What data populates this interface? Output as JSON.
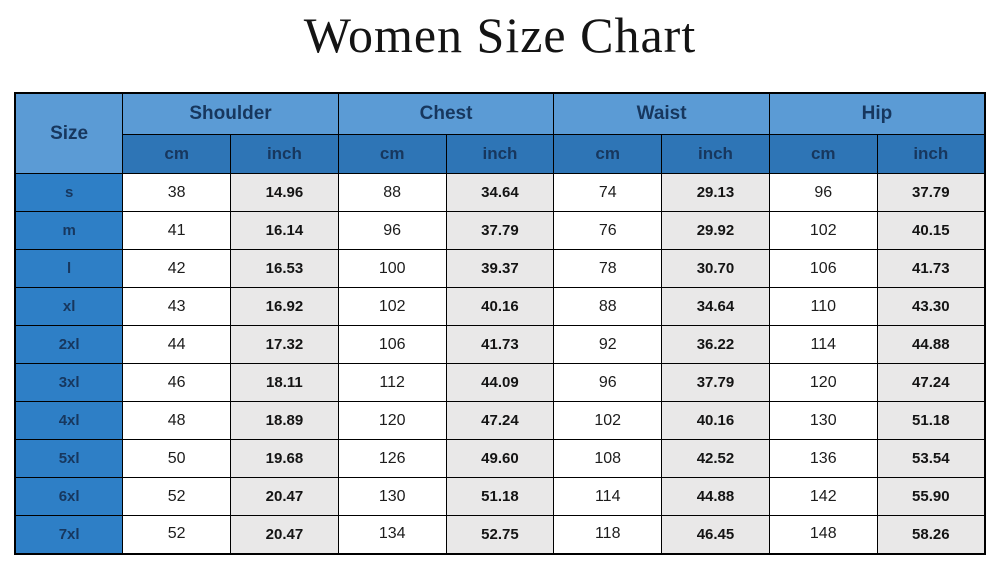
{
  "page": {
    "title": "Women Size Chart"
  },
  "table": {
    "size_header": "Size",
    "groups": [
      "Shoulder",
      "Chest",
      "Waist",
      "Hip"
    ],
    "unit_headers": [
      "cm",
      "inch"
    ]
  },
  "chart_data": {
    "type": "table",
    "title": "Women Size Chart",
    "columns": [
      "Size",
      "Shoulder cm",
      "Shoulder inch",
      "Chest cm",
      "Chest inch",
      "Waist cm",
      "Waist inch",
      "Hip cm",
      "Hip inch"
    ],
    "rows": [
      [
        "s",
        "38",
        "14.96",
        "88",
        "34.64",
        "74",
        "29.13",
        "96",
        "37.79"
      ],
      [
        "m",
        "41",
        "16.14",
        "96",
        "37.79",
        "76",
        "29.92",
        "102",
        "40.15"
      ],
      [
        "l",
        "42",
        "16.53",
        "100",
        "39.37",
        "78",
        "30.70",
        "106",
        "41.73"
      ],
      [
        "xl",
        "43",
        "16.92",
        "102",
        "40.16",
        "88",
        "34.64",
        "110",
        "43.30"
      ],
      [
        "2xl",
        "44",
        "17.32",
        "106",
        "41.73",
        "92",
        "36.22",
        "114",
        "44.88"
      ],
      [
        "3xl",
        "46",
        "18.11",
        "112",
        "44.09",
        "96",
        "37.79",
        "120",
        "47.24"
      ],
      [
        "4xl",
        "48",
        "18.89",
        "120",
        "47.24",
        "102",
        "40.16",
        "130",
        "51.18"
      ],
      [
        "5xl",
        "50",
        "19.68",
        "126",
        "49.60",
        "108",
        "42.52",
        "136",
        "53.54"
      ],
      [
        "6xl",
        "52",
        "20.47",
        "130",
        "51.18",
        "114",
        "44.88",
        "142",
        "55.90"
      ],
      [
        "7xl",
        "52",
        "20.47",
        "134",
        "52.75",
        "118",
        "46.45",
        "148",
        "58.26"
      ]
    ],
    "layout": {
      "grid": true,
      "header_rows": 2,
      "body_rows": 10
    }
  },
  "colors": {
    "group_header_bg": "#5B9BD5",
    "unit_header_bg": "#2E75B6",
    "size_column_bg": "#2E7FC6",
    "inch_column_bg": "#E9E8E8",
    "cm_column_bg": "#FFFFFF",
    "header_text": "#17375E",
    "border": "#000000",
    "title_text": "#141414"
  }
}
